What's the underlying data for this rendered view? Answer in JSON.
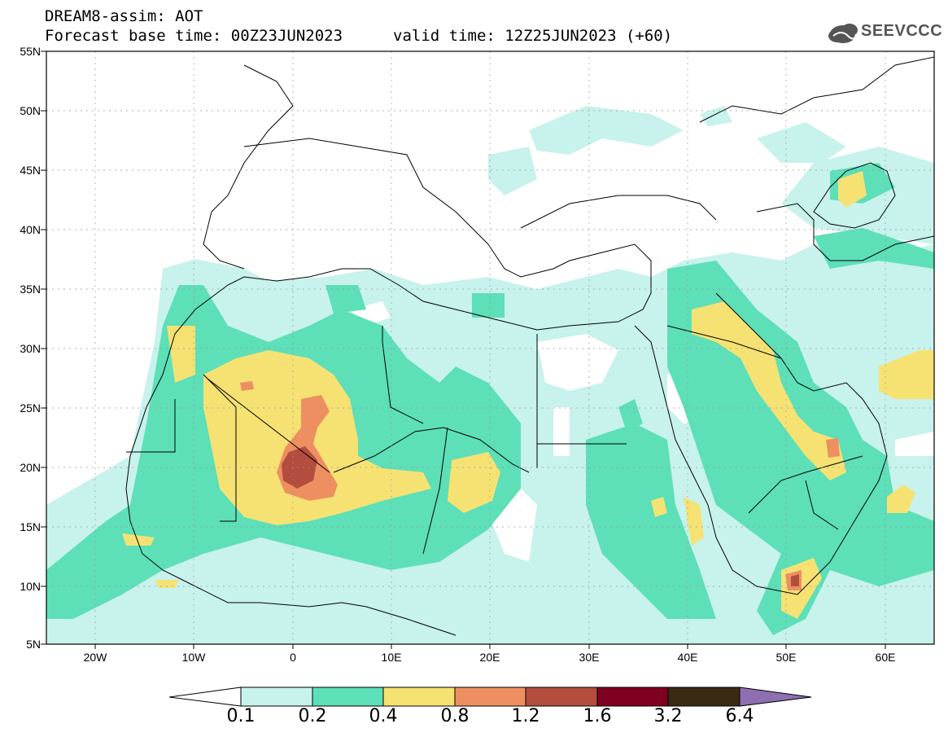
{
  "header": {
    "title": "DREAM8-assim: AOT",
    "base_time": "Forecast base time: 00Z23JUN2023",
    "valid_time": "valid time: 12Z25JUN2023 (+60)",
    "logo_text": "SEEVCCC"
  },
  "axes": {
    "lat_labels": [
      "55N",
      "50N",
      "45N",
      "40N",
      "35N",
      "30N",
      "25N",
      "20N",
      "15N",
      "10N",
      "5N"
    ],
    "lon_labels": [
      "20W",
      "10W",
      "0",
      "10E",
      "20E",
      "30E",
      "40E",
      "50E",
      "60E"
    ],
    "lat_range": [
      5,
      55
    ],
    "lon_range": [
      -25,
      65
    ]
  },
  "colorbar": {
    "labels": [
      "0.1",
      "0.2",
      "0.4",
      "0.8",
      "1.2",
      "1.6",
      "3.2",
      "6.4"
    ],
    "colors": [
      "#c8f2ec",
      "#5ddfb8",
      "#f5e273",
      "#ee8f62",
      "#b34d3e",
      "#800020",
      "#3a2a14",
      "#8d6fb2"
    ],
    "below_color": "#ffffff"
  },
  "legend_levels": [
    {
      "range": "0.1-0.2",
      "color": "#c8f2ec"
    },
    {
      "range": "0.2-0.4",
      "color": "#5ddfb8"
    },
    {
      "range": "0.4-0.8",
      "color": "#f5e273"
    },
    {
      "range": "0.8-1.2",
      "color": "#ee8f62"
    },
    {
      "range": "1.2-1.6",
      "color": "#b34d3e"
    }
  ]
}
